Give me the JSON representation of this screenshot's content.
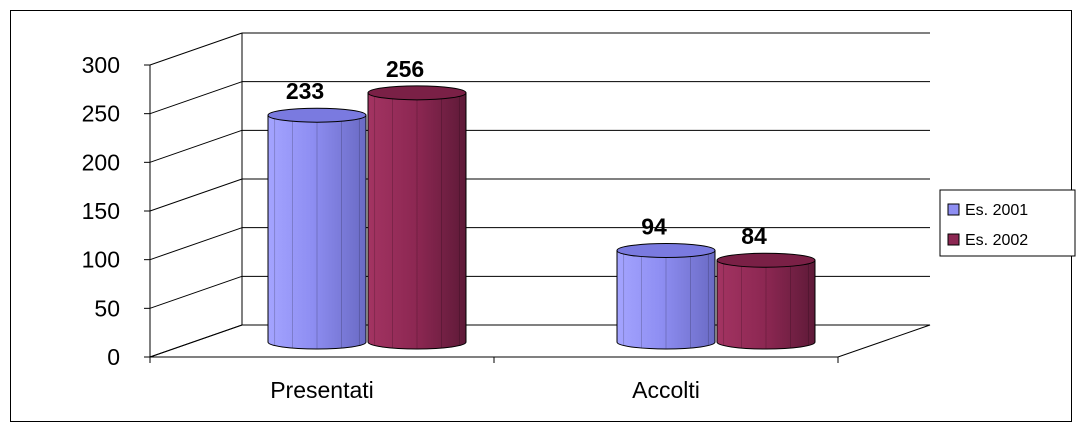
{
  "chart_data": {
    "type": "bar",
    "style": "3d-cylinder",
    "categories": [
      "Presentati",
      "Accolti"
    ],
    "series": [
      {
        "name": "Es. 2001",
        "values": [
          233,
          94
        ],
        "color": "#8e8ef2"
      },
      {
        "name": "Es. 2002",
        "values": [
          256,
          84
        ],
        "color": "#8c2752"
      }
    ],
    "y_ticks": [
      "0",
      "50",
      "100",
      "150",
      "200",
      "250",
      "300"
    ],
    "ylim": [
      0,
      300
    ],
    "grid": true,
    "legend": "right",
    "data_labels": true
  }
}
